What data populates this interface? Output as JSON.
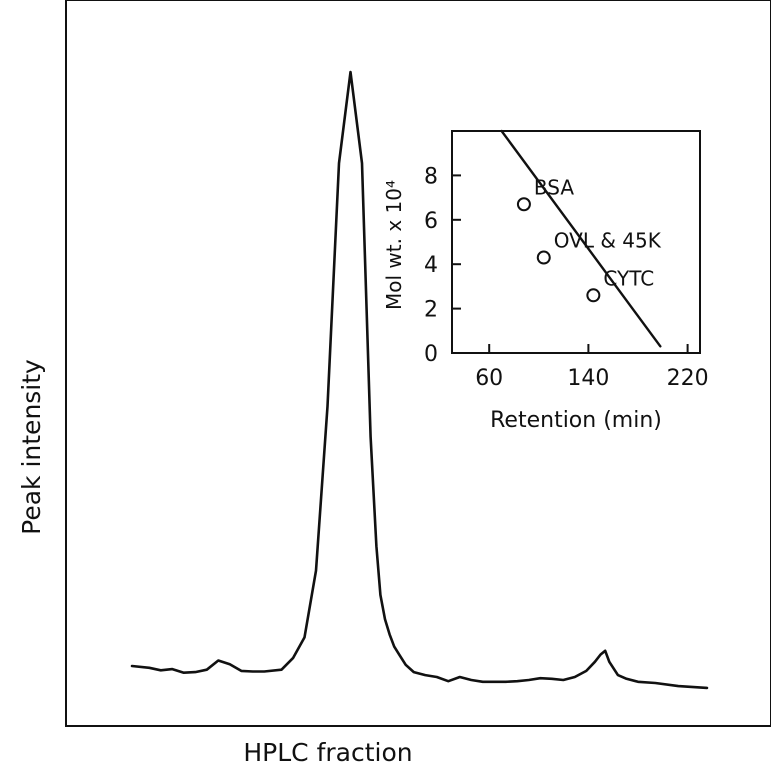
{
  "chart_data": [
    {
      "type": "line",
      "xlabel": "HPLC fraction",
      "ylabel": "Peak intensity",
      "x_ticks": [],
      "y_ticks": [],
      "xlim": [
        0,
        100
      ],
      "ylim": [
        0,
        100
      ],
      "grid": false,
      "trace": {
        "x": [
          0,
          3,
          5,
          7,
          9,
          11,
          13,
          15,
          17,
          19,
          21,
          23,
          26,
          28,
          30,
          32,
          34,
          36,
          38,
          40,
          41.5,
          42.5,
          43.2,
          44,
          44.8,
          45.6,
          46.6,
          47.6,
          49,
          51,
          53,
          55,
          57,
          59,
          61,
          63,
          65,
          67,
          69,
          71,
          73,
          75,
          77,
          79,
          80.5,
          81.5,
          82.3,
          83,
          84.5,
          86,
          88,
          91,
          95,
          100
        ],
        "y": [
          2.3,
          2.0,
          1.6,
          1.8,
          1.2,
          1.3,
          1.7,
          3.2,
          2.6,
          1.5,
          1.4,
          1.4,
          1.7,
          3.6,
          7.0,
          18.0,
          45.0,
          85.0,
          100.0,
          85.0,
          40.0,
          22.0,
          14.0,
          10.0,
          7.5,
          5.5,
          4.0,
          2.5,
          1.3,
          0.8,
          0.5,
          -0.2,
          0.5,
          0.0,
          -0.3,
          -0.3,
          -0.3,
          -0.2,
          0.0,
          0.3,
          0.2,
          0.0,
          0.5,
          1.5,
          3.0,
          4.2,
          4.8,
          3.0,
          0.8,
          0.2,
          -0.3,
          -0.5,
          -1.0,
          -1.3
        ]
      }
    },
    {
      "type": "scatter",
      "xlabel": "Retention (min)",
      "ylabel": "Mol wt. x 10⁴",
      "xlim": [
        30,
        230
      ],
      "ylim": [
        0,
        10
      ],
      "x_ticks": [
        60,
        140,
        220
      ],
      "y_ticks": [
        0,
        2,
        4,
        6,
        8
      ],
      "grid": false,
      "points": [
        {
          "label": "BSA",
          "x": 88,
          "y": 6.7
        },
        {
          "label": "OVL & 45K",
          "x": 104,
          "y": 4.3
        },
        {
          "label": "CYTC",
          "x": 144,
          "y": 2.6
        }
      ],
      "fit_line": {
        "x": [
          70,
          198
        ],
        "y": [
          10.0,
          0.3
        ]
      }
    }
  ]
}
